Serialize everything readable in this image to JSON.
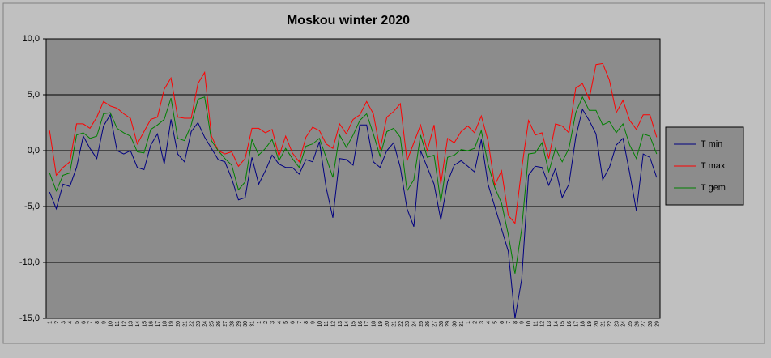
{
  "chart_data": {
    "type": "line",
    "title": "Moskou winter 2020",
    "categories": [
      "1",
      "2",
      "3",
      "4",
      "5",
      "6",
      "7",
      "8",
      "9",
      "10",
      "11",
      "12",
      "13",
      "14",
      "15",
      "16",
      "17",
      "18",
      "19",
      "20",
      "21",
      "22",
      "23",
      "24",
      "25",
      "26",
      "27",
      "28",
      "29",
      "30",
      "31",
      "1",
      "2",
      "3",
      "4",
      "5",
      "6",
      "7",
      "8",
      "9",
      "10",
      "11",
      "12",
      "13",
      "14",
      "15",
      "16",
      "17",
      "18",
      "19",
      "20",
      "21",
      "22",
      "23",
      "24",
      "25",
      "26",
      "27",
      "28",
      "29",
      "30",
      "31",
      "1",
      "2",
      "3",
      "4",
      "5",
      "6",
      "7",
      "8",
      "9",
      "10",
      "11",
      "12",
      "13",
      "14",
      "15",
      "16",
      "17",
      "18",
      "19",
      "20",
      "21",
      "22",
      "23",
      "24",
      "25",
      "26",
      "27",
      "28",
      "29"
    ],
    "series": [
      {
        "name": "T min",
        "color": "#000080",
        "values": [
          -3.7,
          -5.2,
          -3,
          -3.2,
          -1.5,
          1.3,
          0.2,
          -0.7,
          2.2,
          3.2,
          0,
          -0.3,
          0,
          -1.5,
          -1.7,
          0.5,
          1.5,
          -1.2,
          2.8,
          -0.3,
          -1,
          1.7,
          2.5,
          1.2,
          0.2,
          -0.8,
          -1,
          -2.5,
          -4.4,
          -4.2,
          -0.6,
          -3,
          -1.8,
          -0.4,
          -1.2,
          -1.5,
          -1.5,
          -2.1,
          -0.8,
          -1,
          0.8,
          -3.3,
          -6,
          -0.7,
          -0.8,
          -1.3,
          2.3,
          2.3,
          -1,
          -1.5,
          0,
          0.7,
          -1.5,
          -5.2,
          -6.8,
          0,
          -1.5,
          -3,
          -6.2,
          -2.8,
          -1.3,
          -0.9,
          -1.4,
          -1.9,
          1,
          -3,
          -5,
          -7,
          -9,
          -15,
          -11.5,
          -2.2,
          -1.4,
          -1.5,
          -3.1,
          -1.6,
          -4.2,
          -3,
          1.2,
          3.7,
          2.7,
          1.5,
          -2.6,
          -1.5,
          0.5,
          1.1,
          -2,
          -5.4,
          -0.3,
          -0.6,
          -2.4
        ]
      },
      {
        "name": "T max",
        "color": "#ff0000",
        "values": [
          1.8,
          -2.2,
          -1.5,
          -1,
          2.4,
          2.4,
          2,
          3,
          4.4,
          4,
          3.8,
          3.3,
          2.9,
          0.6,
          1.7,
          2.8,
          3,
          5.5,
          6.5,
          3,
          2.9,
          2.9,
          6,
          7,
          1.3,
          0,
          -0.3,
          -0.1,
          -1.4,
          -0.7,
          2,
          2,
          1.6,
          1.9,
          -0.5,
          1.3,
          -0.2,
          -1,
          1.2,
          2.1,
          1.8,
          0.6,
          0.2,
          2.4,
          1.5,
          2.8,
          3.2,
          4.4,
          3.3,
          0.1,
          3,
          3.5,
          4.2,
          -0.9,
          0.7,
          2.3,
          0,
          2.3,
          -3,
          1.1,
          0.7,
          1.7,
          2.2,
          1.6,
          3.1,
          0.9,
          -3.1,
          -1.8,
          -5.8,
          -6.5,
          -1.6,
          2.7,
          1.4,
          1.6,
          -0.7,
          2.4,
          2.2,
          1.6,
          5.6,
          6,
          4.6,
          7.7,
          7.8,
          6.3,
          3.4,
          4.5,
          2.7,
          1.9,
          3.2,
          3.2,
          1.2
        ]
      },
      {
        "name": "T gem",
        "color": "#008000",
        "values": [
          -2,
          -3.6,
          -2.2,
          -2,
          1.4,
          1.6,
          1.1,
          1.3,
          3.3,
          3.4,
          2,
          1.6,
          1.3,
          -0.1,
          -0.2,
          1.9,
          2.3,
          2.8,
          4.7,
          1.1,
          0.9,
          2.3,
          4.6,
          4.8,
          0.9,
          0,
          -0.7,
          -1.3,
          -3.5,
          -2.8,
          1,
          -0.4,
          0.2,
          1,
          -0.9,
          0.2,
          -0.7,
          -1.5,
          0.4,
          0.6,
          1.1,
          -0.6,
          -2.4,
          1.4,
          0.3,
          1.4,
          2.7,
          3.3,
          1.5,
          -0.5,
          1.7,
          2,
          1.2,
          -3.6,
          -2.6,
          1.4,
          -0.6,
          -0.4,
          -4.6,
          -0.6,
          -0.4,
          0.1,
          0,
          0.2,
          1.8,
          -1.2,
          -3.3,
          -4.7,
          -7.5,
          -11,
          -7,
          -0.3,
          -0.2,
          0.7,
          -1.9,
          0.2,
          -1,
          0.2,
          3.4,
          4.8,
          3.6,
          3.6,
          2.3,
          2.6,
          1.6,
          2.4,
          0.5,
          -0.7,
          1.5,
          1.3,
          -0.3
        ]
      }
    ],
    "ylim": [
      -15,
      10
    ],
    "yticks": [
      {
        "value": -15,
        "label": "-15,0"
      },
      {
        "value": -10,
        "label": "-10,0"
      },
      {
        "value": -5,
        "label": "-5,0"
      },
      {
        "value": 0,
        "label": "0,0"
      },
      {
        "value": 5,
        "label": "5,0"
      },
      {
        "value": 10,
        "label": "10,0"
      }
    ],
    "grid": true,
    "legend": "right",
    "plot_color": "#8c8c8c"
  }
}
